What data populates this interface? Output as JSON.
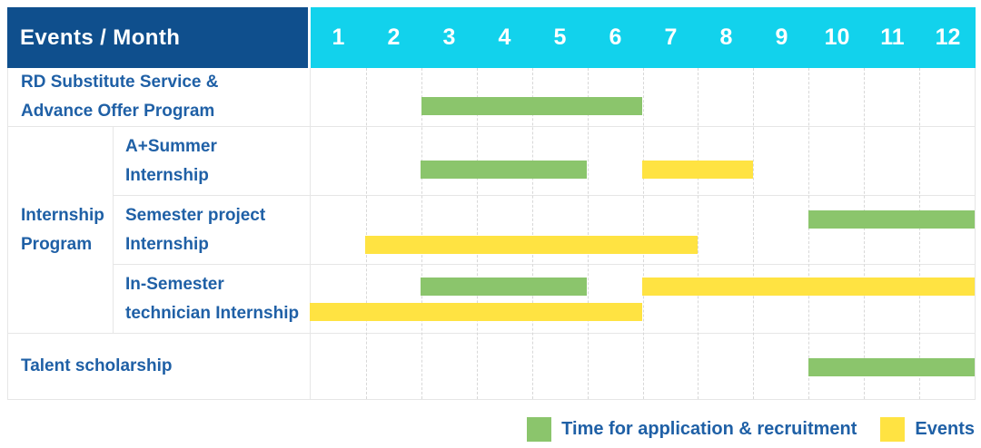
{
  "header": {
    "title": "Events / Month"
  },
  "colors": {
    "header_bg": "#0f4f8d",
    "months_bg": "#12d2ec",
    "header_text": "#ffffff",
    "label_text": "#1f60a6",
    "grid_line": "#e6e6e6",
    "application_green": "#8bc56c",
    "events_yellow": "#ffe342"
  },
  "chart_data": {
    "type": "bar",
    "variant": "gantt-schedule",
    "title": "Events / Month",
    "xlabel": "Month",
    "x_axis": {
      "ticks": [
        1,
        2,
        3,
        4,
        5,
        6,
        7,
        8,
        9,
        10,
        11,
        12
      ],
      "range": [
        1,
        12
      ]
    },
    "grid": true,
    "legend_position": "bottom-right",
    "series_colors": {
      "application": "#8bc56c",
      "events": "#ffe342"
    },
    "group_label": "Internship\nProgram",
    "rows": [
      {
        "label": "RD Substitute Service &\nAdvance Offer Program",
        "group": null,
        "bars": [
          {
            "series": "application",
            "start_month": 3,
            "end_month": 6,
            "lane": 0
          }
        ]
      },
      {
        "label": "A+Summer\nInternship",
        "group": "Internship Program",
        "bars": [
          {
            "series": "application",
            "start_month": 3,
            "end_month": 5,
            "lane": 0
          },
          {
            "series": "events",
            "start_month": 7,
            "end_month": 8,
            "lane": 0
          }
        ]
      },
      {
        "label": "Semester project\nInternship",
        "group": "Internship Program",
        "bars": [
          {
            "series": "application",
            "start_month": 10,
            "end_month": 12,
            "lane": 0
          },
          {
            "series": "events",
            "start_month": 2,
            "end_month": 7,
            "lane": 1
          }
        ]
      },
      {
        "label": "In-Semester\ntechnician Internship",
        "group": "Internship Program",
        "bars": [
          {
            "series": "application",
            "start_month": 3,
            "end_month": 5,
            "lane": 0
          },
          {
            "series": "events",
            "start_month": 7,
            "end_month": 12,
            "lane": 0
          },
          {
            "series": "events",
            "start_month": 1,
            "end_month": 6,
            "lane": 1
          }
        ]
      },
      {
        "label": "Talent scholarship",
        "group": null,
        "bars": [
          {
            "series": "application",
            "start_month": 10,
            "end_month": 12,
            "lane": 0
          }
        ]
      }
    ],
    "legend": [
      {
        "series": "application",
        "label": "Time for application & recruitment",
        "color": "#8bc56c"
      },
      {
        "series": "events",
        "label": "Events",
        "color": "#ffe342"
      }
    ]
  }
}
